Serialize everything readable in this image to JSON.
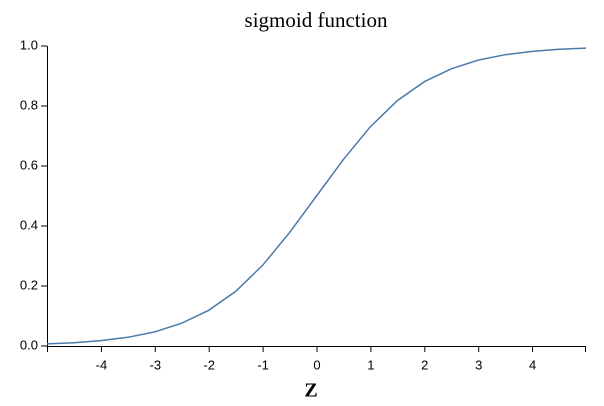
{
  "chart_data": {
    "type": "line",
    "title": "sigmoid function",
    "x_label": "Z",
    "x": [
      -5,
      -4.5,
      -4,
      -3.5,
      -3,
      -2.5,
      -2,
      -1.5,
      -1,
      -0.5,
      0,
      0.5,
      1,
      1.5,
      2,
      2.5,
      3,
      3.5,
      4,
      4.5,
      5
    ],
    "values": [
      0.007,
      0.011,
      0.018,
      0.029,
      0.047,
      0.076,
      0.119,
      0.182,
      0.269,
      0.378,
      0.5,
      0.622,
      0.731,
      0.818,
      0.881,
      0.924,
      0.953,
      0.971,
      0.982,
      0.989,
      0.993
    ],
    "color": "#4a7bab",
    "xlim": [
      -5,
      5
    ],
    "xticks": [
      -4,
      -3,
      -2,
      -1,
      0,
      1,
      2,
      3,
      4
    ],
    "ylim": [
      0,
      1
    ],
    "yticks": [
      {
        "value": 0,
        "label": "0.0"
      },
      0.2,
      0.4,
      0.6,
      0.8,
      {
        "value": 1,
        "label": "1.0"
      }
    ]
  }
}
